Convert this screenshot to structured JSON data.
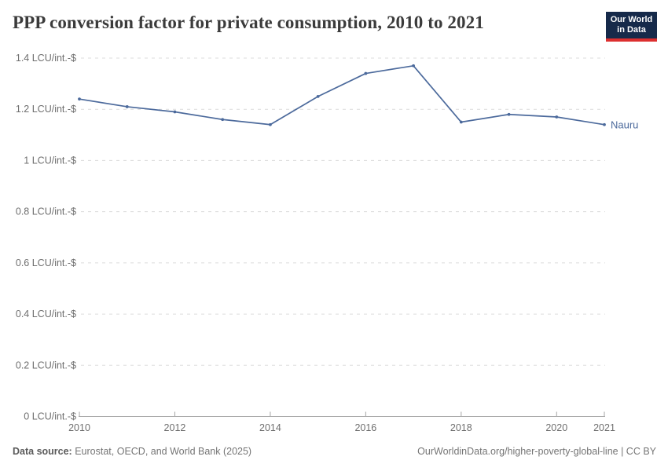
{
  "header": {
    "title": "PPP conversion factor for private consumption, 2010 to 2021",
    "logo": {
      "line1": "Our World",
      "line2": "in Data",
      "bg_color": "#162a4a",
      "accent_color": "#dc2f2f"
    }
  },
  "chart_data": {
    "type": "line",
    "title": "PPP conversion factor for private consumption, 2010 to 2021",
    "xlabel": "",
    "ylabel": "LCU/int.-$",
    "unit": "LCU/int.-$",
    "grid": true,
    "legend_position": "end-of-line-label",
    "xlim": [
      2010,
      2021
    ],
    "ylim": [
      0,
      1.4
    ],
    "x": [
      2010,
      2011,
      2012,
      2013,
      2014,
      2015,
      2016,
      2017,
      2018,
      2019,
      2020,
      2021
    ],
    "series": [
      {
        "name": "Nauru",
        "color": "#4c6a9c",
        "values": [
          1.24,
          1.21,
          1.19,
          1.16,
          1.14,
          1.25,
          1.34,
          1.37,
          1.15,
          1.18,
          1.17,
          1.14
        ]
      }
    ],
    "x_ticks": [
      {
        "value": 2010,
        "label": "2010"
      },
      {
        "value": 2012,
        "label": "2012"
      },
      {
        "value": 2014,
        "label": "2014"
      },
      {
        "value": 2016,
        "label": "2016"
      },
      {
        "value": 2018,
        "label": "2018"
      },
      {
        "value": 2020,
        "label": "2020"
      },
      {
        "value": 2021,
        "label": "2021"
      }
    ],
    "y_ticks": [
      {
        "value": 1.4,
        "label": "1.4 LCU/int.-$"
      },
      {
        "value": 1.2,
        "label": "1.2 LCU/int.-$"
      },
      {
        "value": 1.0,
        "label": "1 LCU/int.-$"
      },
      {
        "value": 0.8,
        "label": "0.8 LCU/int.-$"
      },
      {
        "value": 0.6,
        "label": "0.6 LCU/int.-$"
      },
      {
        "value": 0.4,
        "label": "0.4 LCU/int.-$"
      },
      {
        "value": 0.2,
        "label": "0.2 LCU/int.-$"
      },
      {
        "value": 0,
        "label": "0 LCU/int.-$"
      }
    ],
    "colors": {
      "line": "#4c6a9c",
      "gridline": "#dcdcdc",
      "axis": "#a5a5a5",
      "tick_label": "#6e6e6e"
    }
  },
  "footer": {
    "datasource_label": "Data source:",
    "datasource_text": "Eurostat, OECD, and World Bank (2025)",
    "credit": "OurWorldinData.org/higher-poverty-global-line | CC BY"
  }
}
